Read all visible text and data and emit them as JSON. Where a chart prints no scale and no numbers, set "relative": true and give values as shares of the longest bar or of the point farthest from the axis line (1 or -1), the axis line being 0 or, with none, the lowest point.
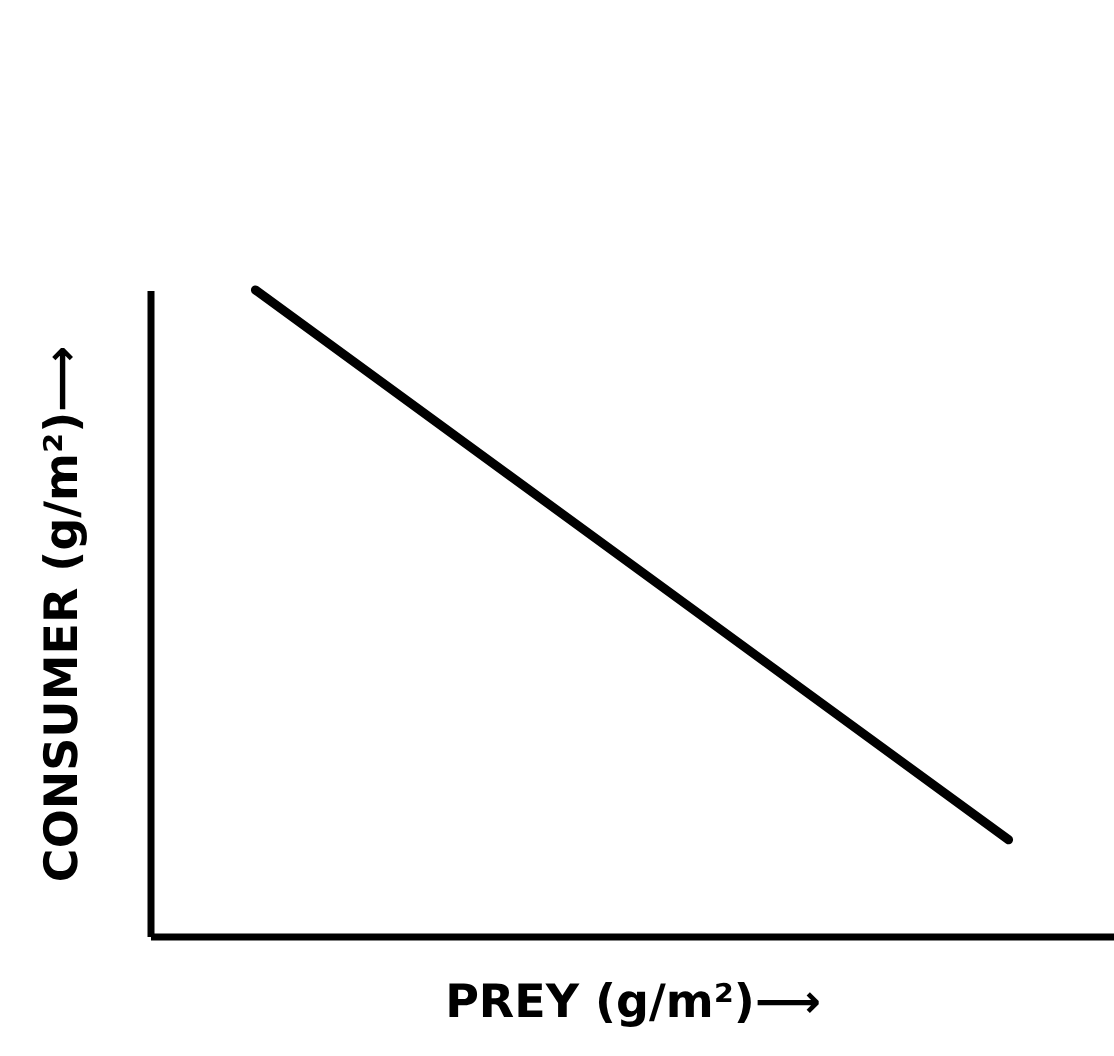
{
  "chart_data": {
    "type": "line",
    "relative": true,
    "xlabel": "PREY (g/m²)⟶",
    "ylabel": "CONSUMER (g/m²)⟶",
    "categories": [
      null,
      null
    ],
    "series": [
      {
        "color": "#000000",
        "values": [
          1,
          0.149
        ]
      }
    ],
    "tick_labels": false,
    "grid": false,
    "marker": "none",
    "line_style": "solid"
  }
}
